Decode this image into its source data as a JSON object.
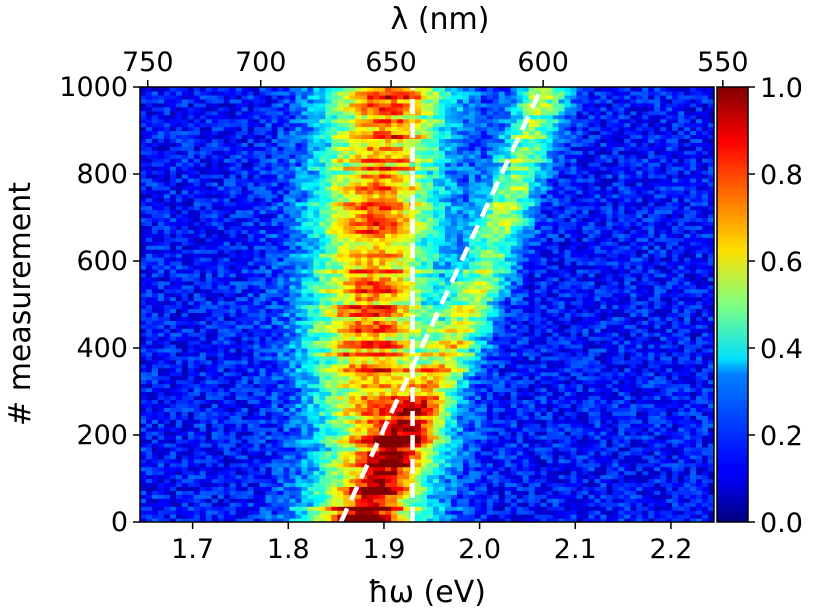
{
  "chart_data": {
    "type": "heatmap",
    "title": "",
    "xlabel": "ħω (eV)",
    "xlabel_top": "λ (nm)",
    "ylabel": "# measurement",
    "xlim": [
      1.645,
      2.245
    ],
    "ylim": [
      0,
      1000
    ],
    "x_ticks": [
      1.7,
      1.8,
      1.9,
      2.0,
      2.1,
      2.2
    ],
    "x_tick_labels": [
      "1.7",
      "1.8",
      "1.9",
      "2.0",
      "2.1",
      "2.2"
    ],
    "y_ticks": [
      0,
      200,
      400,
      600,
      800,
      1000
    ],
    "y_tick_labels": [
      "0",
      "200",
      "400",
      "600",
      "800",
      "1000"
    ],
    "top_ticks_nm": [
      750,
      700,
      650,
      600,
      550
    ],
    "top_tick_labels": [
      "750",
      "700",
      "650",
      "600",
      "550"
    ],
    "colorbar": {
      "colormap": "jet",
      "range": [
        0.0,
        1.0
      ],
      "ticks": [
        0.0,
        0.2,
        0.4,
        0.6,
        0.8,
        1.0
      ],
      "tick_labels": [
        "0.0",
        "0.2",
        "0.4",
        "0.6",
        "0.8",
        "1.0"
      ]
    },
    "peak_bands": [
      {
        "name": "main band",
        "points": [
          [
            1.88,
            0
          ],
          [
            1.9,
            200
          ],
          [
            1.885,
            400
          ],
          [
            1.89,
            600
          ],
          [
            1.895,
            800
          ],
          [
            1.905,
            1000
          ]
        ],
        "width_eV": 0.045
      },
      {
        "name": "tilted band",
        "points": [
          [
            1.875,
            0
          ],
          [
            1.925,
            200
          ],
          [
            1.975,
            400
          ],
          [
            2.01,
            600
          ],
          [
            2.04,
            800
          ],
          [
            2.07,
            1000
          ]
        ],
        "width_eV": 0.02
      }
    ],
    "dashed_lines": [
      {
        "name": "vertical",
        "points": [
          [
            1.93,
            0
          ],
          [
            1.93,
            1000
          ]
        ],
        "color": "#ffffff"
      },
      {
        "name": "diagonal",
        "points": [
          [
            1.855,
            0
          ],
          [
            2.065,
            1000
          ]
        ],
        "color": "#ffffff"
      }
    ]
  }
}
